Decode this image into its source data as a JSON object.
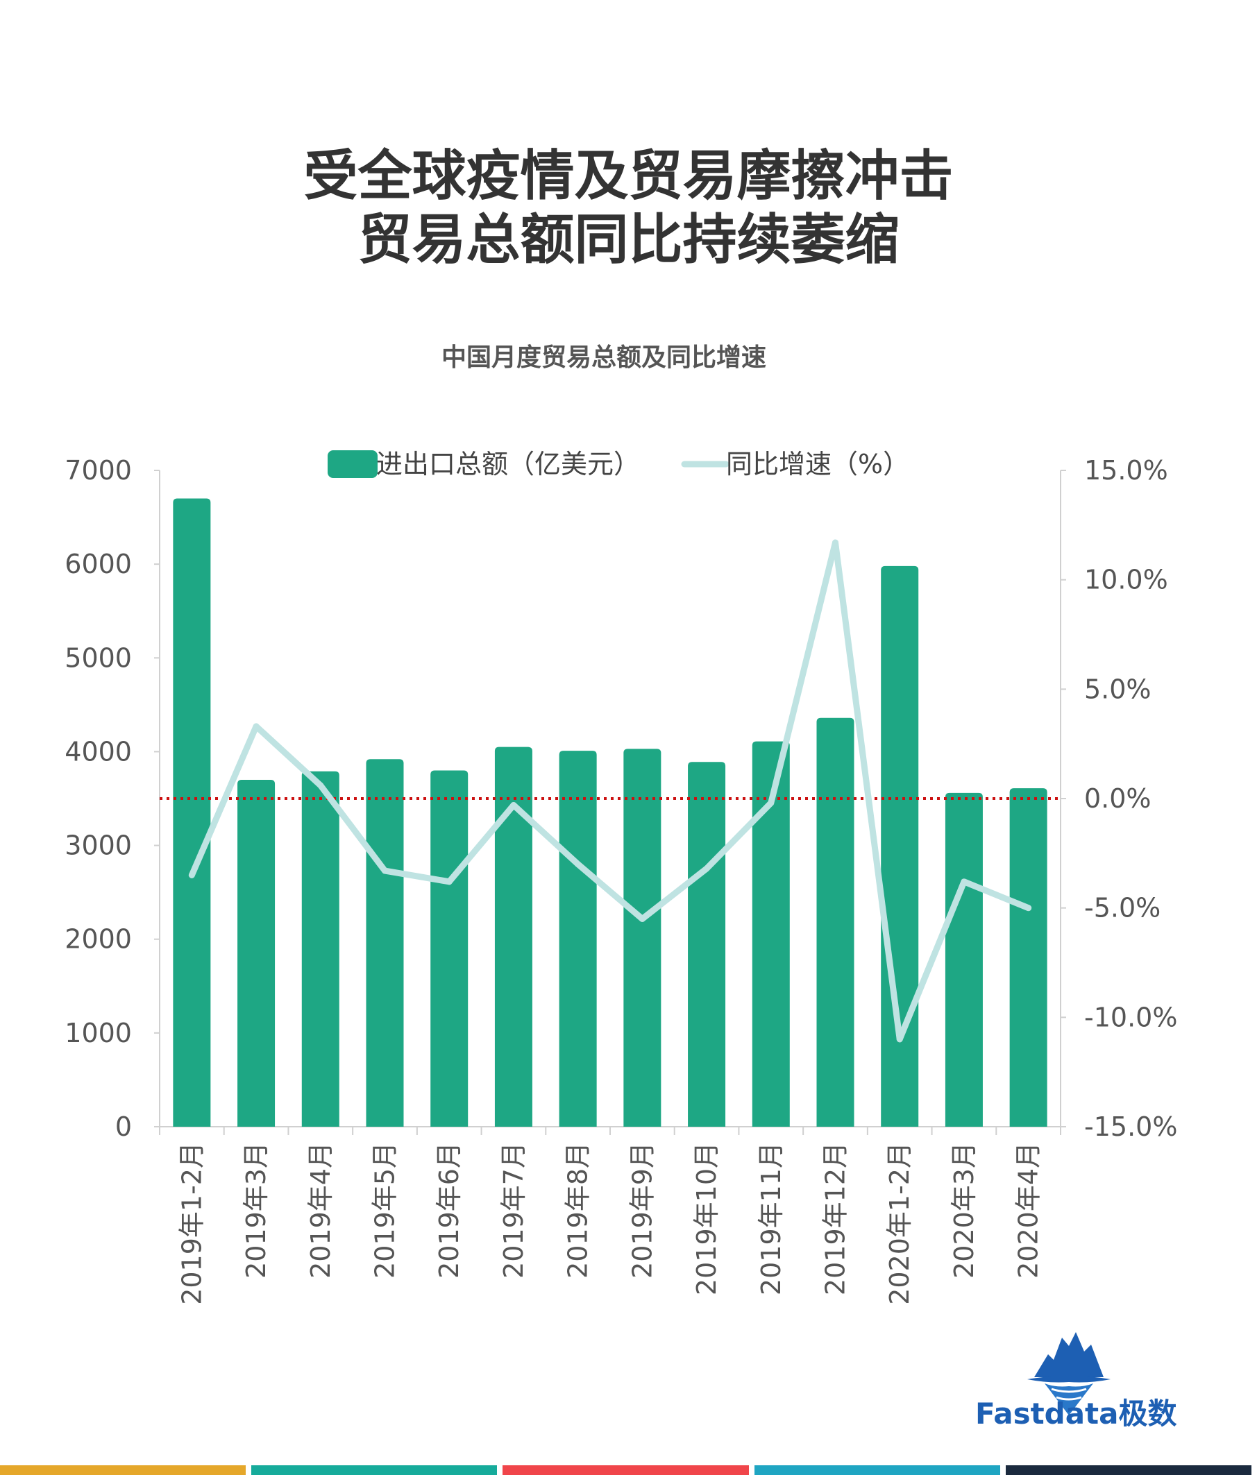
{
  "header": {
    "title_line1": "受全球疫情及贸易摩擦冲击",
    "title_line2": "贸易总额同比持续萎缩",
    "subtitle": "中国月度贸易总额及同比增速"
  },
  "logo": {
    "text": "Fastdata极数",
    "icon": "iceberg-logo-icon"
  },
  "colors": {
    "bar": "#1ea784",
    "line": "#bfe3e2",
    "zero_line": "#cc1111",
    "axis": "#d0d0d0",
    "tick_text": "#555555",
    "bottom_bar": [
      "#e5a72a",
      "#16ab9b",
      "#f0454a",
      "#1fa5c2",
      "#1b2a3e"
    ]
  },
  "chart_data": {
    "type": "bar",
    "categories": [
      "2019年1-2月",
      "2019年3月",
      "2019年4月",
      "2019年5月",
      "2019年6月",
      "2019年7月",
      "2019年8月",
      "2019年9月",
      "2019年10月",
      "2019年11月",
      "2019年12月",
      "2020年1-2月",
      "2020年3月",
      "2020年4月"
    ],
    "series": [
      {
        "name": "进出口总额（亿美元）",
        "type": "bar",
        "axis": "left",
        "values": [
          6700,
          3700,
          3790,
          3920,
          3800,
          4050,
          4010,
          4030,
          3890,
          4110,
          4360,
          5980,
          3560,
          3610
        ]
      },
      {
        "name": "同比增速（%）",
        "type": "line",
        "axis": "right",
        "values": [
          -3.5,
          3.3,
          0.6,
          -3.3,
          -3.8,
          -0.3,
          -3.0,
          -5.5,
          -3.2,
          -0.2,
          11.7,
          -11.0,
          -3.8,
          -5.0
        ]
      }
    ],
    "y_left": {
      "ylim": [
        0,
        7000
      ],
      "ticks": [
        "0",
        "1000",
        "2000",
        "3000",
        "4000",
        "5000",
        "6000",
        "7000"
      ]
    },
    "y_right": {
      "ylim": [
        -15,
        15
      ],
      "ticks": [
        "-15.0%",
        "-10.0%",
        "-5.0%",
        "0.0%",
        "5.0%",
        "10.0%",
        "15.0%"
      ]
    },
    "reference_line": {
      "axis": "right",
      "value": 0,
      "style": "dotted"
    },
    "legend": {
      "placement": "top-center"
    },
    "grid": false
  }
}
